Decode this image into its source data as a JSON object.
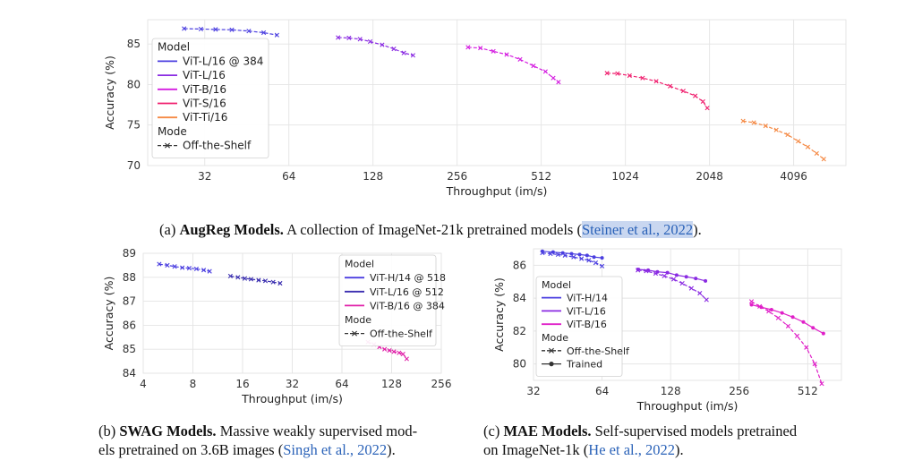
{
  "chart_data": [
    {
      "type": "line",
      "xlabel": "Throughput (im/s)",
      "ylabel": "Accuracy (%)",
      "xscale": "log2",
      "xlim": [
        20,
        6300
      ],
      "ylim": [
        70,
        88
      ],
      "xticks": [
        32,
        64,
        128,
        256,
        512,
        1024,
        2048,
        4096
      ],
      "xtick_labels": [
        "32",
        "64",
        "128",
        "256",
        "512",
        "1024",
        "2048",
        "4096"
      ],
      "yticks": [
        70,
        75,
        80,
        85
      ],
      "ytick_labels": [
        "70",
        "75",
        "80",
        "85"
      ],
      "grid": true,
      "legend_position": "top-left",
      "legend_titles": [
        "Model",
        "Mode"
      ],
      "mode_entries": [
        {
          "name": "Off-the-Shelf",
          "marker": "x",
          "dash": true
        }
      ],
      "series": [
        {
          "name": "ViT-L/16 @ 384",
          "color": "#4b3fe0",
          "points": [
            [
              27,
              86.9
            ],
            [
              31,
              86.85
            ],
            [
              35,
              86.8
            ],
            [
              40,
              86.75
            ],
            [
              46,
              86.6
            ],
            [
              52,
              86.4
            ],
            [
              58,
              86.1
            ]
          ]
        },
        {
          "name": "ViT-L/16",
          "color": "#8a2be2",
          "points": [
            [
              96,
              85.8
            ],
            [
              105,
              85.75
            ],
            [
              115,
              85.6
            ],
            [
              125,
              85.3
            ],
            [
              138,
              84.9
            ],
            [
              152,
              84.4
            ],
            [
              165,
              83.9
            ],
            [
              178,
              83.6
            ]
          ]
        },
        {
          "name": "ViT-B/16",
          "color": "#d41ce0",
          "points": [
            [
              280,
              84.6
            ],
            [
              310,
              84.5
            ],
            [
              345,
              84.1
            ],
            [
              385,
              83.7
            ],
            [
              430,
              83.1
            ],
            [
              480,
              82.3
            ],
            [
              530,
              81.6
            ],
            [
              565,
              80.8
            ],
            [
              590,
              80.3
            ]
          ]
        },
        {
          "name": "ViT-S/16",
          "color": "#f0206f",
          "points": [
            [
              880,
              81.4
            ],
            [
              960,
              81.35
            ],
            [
              1060,
              81.1
            ],
            [
              1180,
              80.8
            ],
            [
              1320,
              80.4
            ],
            [
              1480,
              79.8
            ],
            [
              1650,
              79.2
            ],
            [
              1820,
              78.6
            ],
            [
              1940,
              77.9
            ],
            [
              2010,
              77.1
            ]
          ]
        },
        {
          "name": "ViT-Ti/16",
          "color": "#f58a45",
          "points": [
            [
              2700,
              75.5
            ],
            [
              2950,
              75.3
            ],
            [
              3250,
              74.9
            ],
            [
              3550,
              74.4
            ],
            [
              3900,
              73.8
            ],
            [
              4250,
              73.0
            ],
            [
              4600,
              72.3
            ],
            [
              4950,
              71.5
            ],
            [
              5250,
              70.8
            ]
          ]
        }
      ]
    },
    {
      "type": "line",
      "xlabel": "Throughput (im/s)",
      "ylabel": "Accuracy (%)",
      "xscale": "log2",
      "xlim": [
        4,
        256
      ],
      "ylim": [
        84,
        89
      ],
      "xticks": [
        4,
        8,
        16,
        32,
        64,
        128,
        256
      ],
      "xtick_labels": [
        "4",
        "8",
        "16",
        "32",
        "64",
        "128",
        "256"
      ],
      "yticks": [
        84,
        85,
        86,
        87,
        88,
        89
      ],
      "ytick_labels": [
        "84",
        "85",
        "86",
        "87",
        "88",
        "89"
      ],
      "grid": true,
      "legend_position": "right",
      "legend_titles": [
        "Model",
        "Mode"
      ],
      "mode_entries": [
        {
          "name": "Off-the-Shelf",
          "marker": "x",
          "dash": true
        }
      ],
      "series": [
        {
          "name": "ViT-H/14 @ 518",
          "color": "#4b3fe0",
          "points": [
            [
              5,
              88.55
            ],
            [
              5.6,
              88.5
            ],
            [
              6.2,
              88.45
            ],
            [
              6.9,
              88.4
            ],
            [
              7.6,
              88.38
            ],
            [
              8.4,
              88.35
            ],
            [
              9.3,
              88.3
            ],
            [
              10.1,
              88.25
            ]
          ]
        },
        {
          "name": "ViT-L/16 @ 512",
          "color": "#3b2fb0",
          "points": [
            [
              13.5,
              88.05
            ],
            [
              15,
              88.0
            ],
            [
              16.5,
              87.95
            ],
            [
              18,
              87.92
            ],
            [
              20,
              87.88
            ],
            [
              22,
              87.85
            ],
            [
              24.5,
              87.8
            ],
            [
              27,
              87.75
            ]
          ]
        },
        {
          "name": "ViT-B/16 @ 384",
          "color": "#e020a8",
          "points": [
            [
              92,
              85.3
            ],
            [
              100,
              85.2
            ],
            [
              108,
              85.1
            ],
            [
              116,
              85.0
            ],
            [
              124,
              84.95
            ],
            [
              132,
              84.9
            ],
            [
              142,
              84.85
            ],
            [
              150,
              84.8
            ],
            [
              158,
              84.6
            ]
          ]
        }
      ]
    },
    {
      "type": "line",
      "xlabel": "Throughput (im/s)",
      "ylabel": "Accuracy (%)",
      "xscale": "log2",
      "xlim": [
        32,
        720
      ],
      "ylim": [
        79,
        87
      ],
      "xticks": [
        32,
        64,
        128,
        256,
        512
      ],
      "xtick_labels": [
        "32",
        "64",
        "128",
        "256",
        "512"
      ],
      "yticks": [
        80,
        82,
        84,
        86
      ],
      "ytick_labels": [
        "80",
        "82",
        "84",
        "86"
      ],
      "grid": true,
      "legend_position": "lower-left",
      "legend_titles": [
        "Model",
        "Mode"
      ],
      "mode_entries": [
        {
          "name": "Off-the-Shelf",
          "marker": "x",
          "dash": true
        },
        {
          "name": "Trained",
          "marker": "o",
          "dash": false
        }
      ],
      "series": [
        {
          "name": "ViT-H/14",
          "color": "#4b3fe0",
          "shelf": [
            [
              35,
              86.75
            ],
            [
              38,
              86.7
            ],
            [
              41,
              86.65
            ],
            [
              44,
              86.6
            ],
            [
              48,
              86.5
            ],
            [
              52,
              86.4
            ],
            [
              56,
              86.3
            ],
            [
              60,
              86.15
            ],
            [
              64,
              85.95
            ]
          ],
          "trained": [
            [
              35,
              86.85
            ],
            [
              39,
              86.8
            ],
            [
              43,
              86.75
            ],
            [
              47,
              86.7
            ],
            [
              51,
              86.65
            ],
            [
              55,
              86.6
            ],
            [
              59,
              86.5
            ],
            [
              64,
              86.45
            ]
          ]
        },
        {
          "name": "ViT-L/16",
          "color": "#8a2be2",
          "shelf": [
            [
              92,
              85.7
            ],
            [
              100,
              85.65
            ],
            [
              110,
              85.5
            ],
            [
              120,
              85.35
            ],
            [
              132,
              85.15
            ],
            [
              144,
              84.9
            ],
            [
              158,
              84.6
            ],
            [
              172,
              84.3
            ],
            [
              184,
              83.9
            ]
          ],
          "trained": [
            [
              92,
              85.75
            ],
            [
              102,
              85.7
            ],
            [
              112,
              85.6
            ],
            [
              124,
              85.55
            ],
            [
              136,
              85.4
            ],
            [
              150,
              85.3
            ],
            [
              165,
              85.2
            ],
            [
              182,
              85.05
            ]
          ]
        },
        {
          "name": "ViT-B/16",
          "color": "#e020c8",
          "shelf": [
            [
              290,
              83.8
            ],
            [
              315,
              83.5
            ],
            [
              345,
              83.2
            ],
            [
              380,
              82.8
            ],
            [
              420,
              82.3
            ],
            [
              460,
              81.7
            ],
            [
              505,
              81.0
            ],
            [
              550,
              80.0
            ],
            [
              590,
              78.8
            ]
          ],
          "trained": [
            [
              290,
              83.6
            ],
            [
              320,
              83.45
            ],
            [
              355,
              83.3
            ],
            [
              395,
              83.1
            ],
            [
              440,
              82.85
            ],
            [
              490,
              82.55
            ],
            [
              540,
              82.2
            ],
            [
              600,
              81.85
            ]
          ]
        }
      ]
    }
  ],
  "captions": {
    "a": {
      "prefix": "(a) ",
      "bold": "AugReg Models.",
      "text": " A collection of ImageNet-21k pretrained models (",
      "cite": "Steiner et al., 2022",
      "suffix": ")."
    },
    "b": {
      "prefix": "(b) ",
      "bold": "SWAG Models.",
      "text": " Massive weakly supervised mod-",
      "line2": "els pretrained on 3.6B images (",
      "cite": "Singh et al., 2022",
      "suffix": ")."
    },
    "c": {
      "prefix": "(c) ",
      "bold": "MAE Models.",
      "text": " Self-supervised models pretrained",
      "line2": "on ImageNet-1k (",
      "cite": "He et al., 2022",
      "suffix": ")."
    }
  }
}
